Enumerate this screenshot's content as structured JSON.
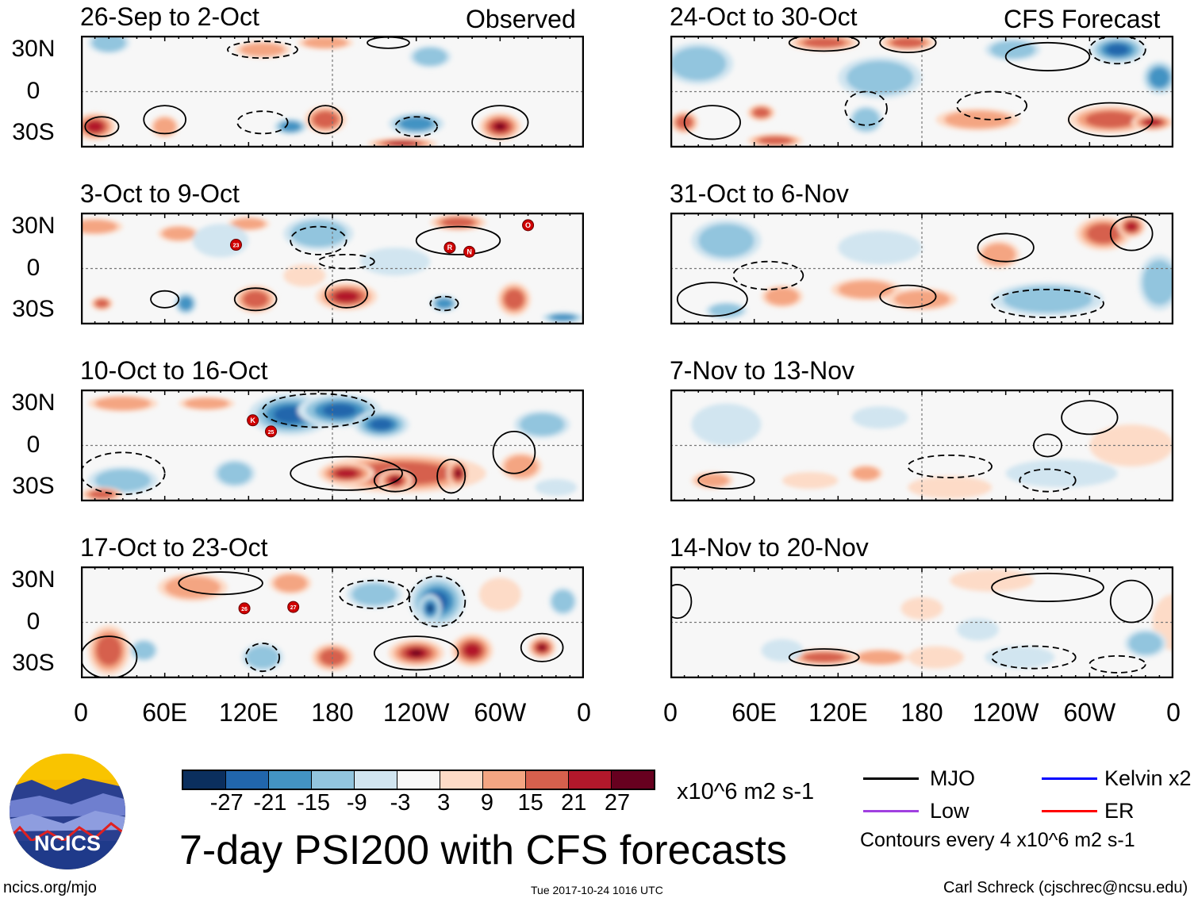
{
  "headers": {
    "observed": "Observed",
    "forecast": "CFS Forecast"
  },
  "axes": {
    "lat_labels": [
      "30N",
      "0",
      "30S"
    ],
    "lon_labels": [
      "0",
      "60E",
      "120E",
      "180",
      "120W",
      "60W",
      "0"
    ]
  },
  "chart_data": {
    "type": "map",
    "title": "7-day PSI200 with CFS forecasts",
    "lon_range": [
      0,
      360
    ],
    "lat_range": [
      -40,
      40
    ],
    "panels": [
      {
        "title": "26-Sep to 2-Oct",
        "kind": "observed",
        "anomalies": [
          [
            10,
            -25,
            15,
            10,
            24
          ],
          [
            60,
            -25,
            10,
            8,
            12
          ],
          [
            150,
            -25,
            12,
            6,
            -15
          ],
          [
            175,
            -20,
            15,
            10,
            18
          ],
          [
            240,
            -23,
            20,
            8,
            -18
          ],
          [
            300,
            -25,
            15,
            10,
            27
          ],
          [
            230,
            -37,
            25,
            4,
            21
          ],
          [
            20,
            35,
            15,
            8,
            -12
          ],
          [
            130,
            30,
            20,
            6,
            9
          ],
          [
            250,
            25,
            15,
            8,
            -9
          ],
          [
            175,
            35,
            20,
            5,
            9
          ]
        ],
        "contours": [
          [
            15,
            -25,
            12,
            7,
            1
          ],
          [
            60,
            -20,
            15,
            10,
            1
          ],
          [
            175,
            -20,
            12,
            10,
            1
          ],
          [
            300,
            -22,
            20,
            12,
            1
          ],
          [
            240,
            -25,
            15,
            7,
            -1
          ],
          [
            130,
            -22,
            18,
            8,
            -1
          ],
          [
            130,
            30,
            25,
            6,
            -1
          ],
          [
            220,
            35,
            15,
            4,
            1
          ]
        ],
        "storms": []
      },
      {
        "title": "3-Oct to 9-Oct",
        "kind": "observed",
        "anomalies": [
          [
            10,
            30,
            20,
            6,
            9
          ],
          [
            70,
            25,
            15,
            6,
            9
          ],
          [
            120,
            32,
            15,
            5,
            12
          ],
          [
            270,
            33,
            20,
            6,
            15
          ],
          [
            15,
            -25,
            8,
            5,
            15
          ],
          [
            125,
            -22,
            15,
            10,
            18
          ],
          [
            190,
            -20,
            22,
            10,
            21
          ],
          [
            310,
            -22,
            12,
            12,
            15
          ],
          [
            160,
            -5,
            15,
            8,
            6
          ],
          [
            75,
            -25,
            8,
            8,
            -15
          ],
          [
            260,
            -25,
            10,
            6,
            -18
          ],
          [
            100,
            20,
            20,
            12,
            -6
          ],
          [
            170,
            25,
            25,
            12,
            -9
          ],
          [
            345,
            -35,
            15,
            4,
            -15
          ],
          [
            225,
            5,
            25,
            10,
            -6
          ]
        ],
        "contours": [
          [
            125,
            -22,
            15,
            8,
            1
          ],
          [
            190,
            -18,
            15,
            10,
            1
          ],
          [
            270,
            20,
            30,
            10,
            1
          ],
          [
            60,
            -22,
            10,
            6,
            1
          ],
          [
            170,
            20,
            20,
            10,
            -1
          ],
          [
            260,
            -25,
            10,
            5,
            -1
          ],
          [
            190,
            5,
            20,
            5,
            -1
          ]
        ],
        "storms": [
          {
            "label": "23",
            "lon": 111,
            "lat": 17
          },
          {
            "label": "R",
            "lon": 264,
            "lat": 15
          },
          {
            "label": "N",
            "lon": 278,
            "lat": 12
          },
          {
            "label": "O",
            "lon": 320,
            "lat": 31
          }
        ]
      },
      {
        "title": "10-Oct to 16-Oct",
        "kind": "observed",
        "anomalies": [
          [
            150,
            22,
            30,
            15,
            -21
          ],
          [
            185,
            25,
            30,
            12,
            -24
          ],
          [
            215,
            15,
            20,
            10,
            -21
          ],
          [
            30,
            -25,
            25,
            10,
            -9
          ],
          [
            110,
            -20,
            15,
            10,
            -9
          ],
          [
            330,
            15,
            20,
            10,
            -9
          ],
          [
            340,
            -30,
            15,
            6,
            -6
          ],
          [
            30,
            30,
            25,
            6,
            9
          ],
          [
            90,
            30,
            20,
            5,
            9
          ],
          [
            230,
            -20,
            60,
            14,
            15
          ],
          [
            190,
            -20,
            20,
            8,
            24
          ],
          [
            225,
            -25,
            12,
            8,
            27
          ],
          [
            270,
            -20,
            8,
            10,
            27
          ],
          [
            315,
            -15,
            15,
            10,
            9
          ],
          [
            15,
            -35,
            15,
            5,
            15
          ]
        ],
        "contours": [
          [
            190,
            -20,
            40,
            12,
            1
          ],
          [
            225,
            -25,
            15,
            8,
            1
          ],
          [
            265,
            -22,
            10,
            12,
            1
          ],
          [
            310,
            -5,
            15,
            15,
            1
          ],
          [
            170,
            25,
            40,
            12,
            -1
          ],
          [
            30,
            -20,
            30,
            15,
            -1
          ]
        ],
        "storms": [
          {
            "label": "K",
            "lon": 123,
            "lat": 18
          },
          {
            "label": "25",
            "lon": 136,
            "lat": 10
          }
        ]
      },
      {
        "title": "17-Oct to 23-Oct",
        "kind": "observed",
        "anomalies": [
          [
            20,
            -20,
            15,
            18,
            18
          ],
          [
            80,
            25,
            25,
            10,
            9
          ],
          [
            150,
            28,
            15,
            8,
            9
          ],
          [
            180,
            -25,
            15,
            10,
            15
          ],
          [
            240,
            -22,
            20,
            10,
            27
          ],
          [
            280,
            -20,
            15,
            12,
            21
          ],
          [
            330,
            -18,
            10,
            8,
            27
          ],
          [
            300,
            20,
            15,
            12,
            6
          ],
          [
            255,
            15,
            20,
            18,
            -21
          ],
          [
            250,
            10,
            8,
            10,
            -27
          ],
          [
            130,
            -25,
            15,
            10,
            -12
          ],
          [
            45,
            -20,
            10,
            8,
            -12
          ],
          [
            210,
            20,
            20,
            10,
            -12
          ],
          [
            345,
            15,
            10,
            10,
            -12
          ]
        ],
        "contours": [
          [
            240,
            -22,
            30,
            12,
            1
          ],
          [
            330,
            -18,
            15,
            10,
            1
          ],
          [
            20,
            -25,
            20,
            15,
            1
          ],
          [
            100,
            28,
            30,
            8,
            1
          ],
          [
            255,
            15,
            20,
            18,
            -1
          ],
          [
            130,
            -25,
            12,
            10,
            -1
          ],
          [
            210,
            20,
            25,
            10,
            -1
          ]
        ],
        "storms": [
          {
            "label": "26",
            "lon": 117,
            "lat": 10
          },
          {
            "label": "27",
            "lon": 152,
            "lat": 11
          }
        ]
      },
      {
        "title": "24-Oct to 30-Oct",
        "kind": "forecast",
        "anomalies": [
          [
            110,
            35,
            25,
            6,
            15
          ],
          [
            170,
            35,
            20,
            6,
            18
          ],
          [
            10,
            -22,
            10,
            8,
            15
          ],
          [
            65,
            -15,
            10,
            6,
            15
          ],
          [
            315,
            -20,
            30,
            10,
            15
          ],
          [
            345,
            -22,
            15,
            6,
            21
          ],
          [
            220,
            -20,
            30,
            8,
            9
          ],
          [
            75,
            -35,
            20,
            5,
            15
          ],
          [
            20,
            20,
            25,
            15,
            -12
          ],
          [
            150,
            10,
            30,
            15,
            -12
          ],
          [
            320,
            30,
            20,
            10,
            -21
          ],
          [
            350,
            10,
            12,
            12,
            -15
          ],
          [
            140,
            -20,
            12,
            10,
            -9
          ],
          [
            245,
            30,
            20,
            8,
            -9
          ]
        ],
        "contours": [
          [
            110,
            35,
            25,
            6,
            1
          ],
          [
            170,
            35,
            20,
            7,
            1
          ],
          [
            270,
            25,
            30,
            10,
            1
          ],
          [
            30,
            -22,
            20,
            12,
            1
          ],
          [
            315,
            -20,
            30,
            12,
            1
          ],
          [
            140,
            -12,
            15,
            12,
            -1
          ],
          [
            320,
            30,
            20,
            10,
            -1
          ],
          [
            230,
            -10,
            25,
            10,
            -1
          ]
        ],
        "storms": []
      },
      {
        "title": "31-Oct to 6-Nov",
        "kind": "forecast",
        "anomalies": [
          [
            40,
            20,
            25,
            15,
            -12
          ],
          [
            150,
            15,
            30,
            12,
            -6
          ],
          [
            270,
            -22,
            40,
            12,
            -9
          ],
          [
            350,
            -10,
            15,
            20,
            -9
          ],
          [
            40,
            -30,
            15,
            6,
            -9
          ],
          [
            310,
            25,
            20,
            12,
            15
          ],
          [
            235,
            10,
            15,
            10,
            9
          ],
          [
            140,
            -15,
            25,
            8,
            9
          ],
          [
            80,
            -20,
            15,
            8,
            12
          ],
          [
            180,
            -22,
            25,
            8,
            9
          ],
          [
            330,
            30,
            10,
            8,
            21
          ]
        ],
        "contours": [
          [
            30,
            -22,
            25,
            12,
            1
          ],
          [
            170,
            -20,
            20,
            8,
            1
          ],
          [
            330,
            25,
            15,
            12,
            1
          ],
          [
            240,
            15,
            20,
            10,
            1
          ],
          [
            70,
            -5,
            25,
            10,
            -1
          ],
          [
            270,
            -25,
            40,
            10,
            -1
          ]
        ],
        "storms": []
      },
      {
        "title": "7-Nov to 13-Nov",
        "kind": "forecast",
        "anomalies": [
          [
            200,
            -30,
            30,
            8,
            6
          ],
          [
            140,
            -20,
            12,
            6,
            12
          ],
          [
            30,
            -25,
            15,
            6,
            9
          ],
          [
            100,
            -25,
            20,
            6,
            6
          ],
          [
            330,
            0,
            30,
            15,
            6
          ],
          [
            40,
            15,
            25,
            15,
            -6
          ],
          [
            280,
            -20,
            40,
            10,
            -6
          ],
          [
            150,
            20,
            20,
            8,
            -4
          ]
        ],
        "contours": [
          [
            40,
            -25,
            20,
            6,
            1
          ],
          [
            300,
            20,
            20,
            12,
            1
          ],
          [
            270,
            0,
            10,
            8,
            1
          ],
          [
            270,
            -25,
            20,
            8,
            -1
          ],
          [
            200,
            -15,
            30,
            8,
            -1
          ]
        ],
        "storms": []
      },
      {
        "title": "14-Nov to 20-Nov",
        "kind": "forecast",
        "anomalies": [
          [
            110,
            -25,
            25,
            6,
            15
          ],
          [
            150,
            -25,
            20,
            6,
            9
          ],
          [
            190,
            -25,
            20,
            8,
            6
          ],
          [
            230,
            30,
            30,
            8,
            6
          ],
          [
            360,
            0,
            15,
            20,
            6
          ],
          [
            180,
            10,
            15,
            8,
            6
          ],
          [
            340,
            -15,
            15,
            10,
            -9
          ],
          [
            220,
            -5,
            15,
            8,
            -6
          ],
          [
            250,
            -25,
            25,
            8,
            -6
          ],
          [
            80,
            -20,
            15,
            8,
            -4
          ]
        ],
        "contours": [
          [
            110,
            -25,
            25,
            6,
            1
          ],
          [
            270,
            25,
            40,
            10,
            1
          ],
          [
            330,
            15,
            15,
            15,
            1
          ],
          [
            5,
            15,
            10,
            12,
            1
          ],
          [
            260,
            -25,
            30,
            8,
            -1
          ],
          [
            320,
            -30,
            20,
            6,
            -1
          ]
        ],
        "storms": []
      }
    ],
    "colorbar": {
      "levels": [
        "-27",
        "-21",
        "-15",
        "-9",
        "-3",
        "3",
        "9",
        "15",
        "21",
        "27"
      ],
      "colors": [
        "#0b2f5e",
        "#2166ac",
        "#4393c3",
        "#92c5de",
        "#d1e5f0",
        "#f7f7f7",
        "#fddbc7",
        "#f4a582",
        "#d6604d",
        "#b2182b",
        "#67001f"
      ],
      "units": "x10^6 m2 s-1"
    },
    "legend": {
      "items": [
        {
          "label": "MJO",
          "color": "#000000"
        },
        {
          "label": "Kelvin x2",
          "color": "#0000ff"
        },
        {
          "label": "Low",
          "color": "#a040e0"
        },
        {
          "label": "ER",
          "color": "#ff0000"
        }
      ],
      "note": "Contours every 4 x10^6 m2 s-1"
    }
  },
  "footer": {
    "logo_text": "NCICS",
    "url": "ncics.org/mjo",
    "timestamp": "Tue 2017-10-24 1016 UTC",
    "author": "Carl Schreck (cjschrec@ncsu.edu)"
  }
}
